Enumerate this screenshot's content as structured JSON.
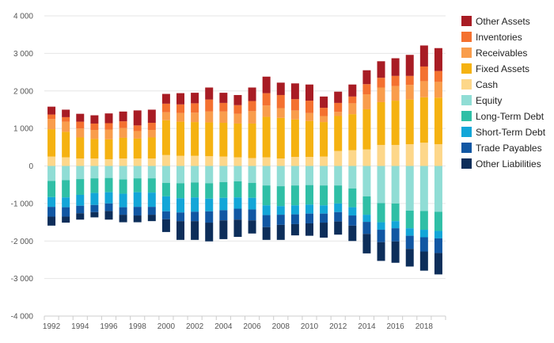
{
  "chart_data": {
    "type": "bar",
    "stacked": true,
    "grid": true,
    "legend_position": "right",
    "ylim": [
      -4000,
      4000
    ],
    "yticks": [
      4000,
      3000,
      2000,
      1000,
      0,
      -1000,
      -2000,
      -3000,
      -4000
    ],
    "ytick_labels": [
      "4 000",
      "3 000",
      "2 000",
      "1 000",
      "0",
      "-1 000",
      "-2 000",
      "-3 000",
      "-4 000"
    ],
    "xtick_labels": [
      "1992",
      "1994",
      "1996",
      "1998",
      "2000",
      "2002",
      "2004",
      "2006",
      "2008",
      "2010",
      "2012",
      "2014",
      "2016",
      "2018"
    ],
    "categories": [
      "1992",
      "1993",
      "1994",
      "1995",
      "1996",
      "1997",
      "1998",
      "1999",
      "2000",
      "2001",
      "2002",
      "2003",
      "2004",
      "2005",
      "2006",
      "2007",
      "2008",
      "2009",
      "2010",
      "2011",
      "2012",
      "2013",
      "2014",
      "2015",
      "2016",
      "2017",
      "2018",
      "2019"
    ],
    "series": [
      {
        "name": "Cash",
        "side": "positive",
        "color": "#fdd78a",
        "values": [
          250,
          230,
          200,
          200,
          180,
          200,
          200,
          200,
          290,
          270,
          270,
          260,
          250,
          230,
          210,
          230,
          200,
          240,
          240,
          250,
          400,
          420,
          440,
          560,
          560,
          580,
          620,
          580
        ]
      },
      {
        "name": "Fixed Assets",
        "side": "positive",
        "color": "#f5b211",
        "values": [
          730,
          680,
          560,
          520,
          530,
          550,
          530,
          560,
          930,
          910,
          900,
          900,
          900,
          900,
          920,
          1080,
          1080,
          1000,
          960,
          920,
          930,
          960,
          1070,
          1140,
          1180,
          1190,
          1210,
          1240
        ]
      },
      {
        "name": "Receivables",
        "side": "positive",
        "color": "#f99d4c",
        "values": [
          270,
          270,
          240,
          240,
          260,
          260,
          200,
          200,
          210,
          230,
          250,
          290,
          300,
          260,
          330,
          300,
          260,
          240,
          210,
          160,
          110,
          290,
          400,
          390,
          390,
          390,
          430,
          420
        ]
      },
      {
        "name": "Inventories",
        "side": "positive",
        "color": "#f47130",
        "values": [
          120,
          120,
          180,
          170,
          170,
          180,
          150,
          190,
          230,
          230,
          250,
          320,
          230,
          230,
          270,
          330,
          350,
          300,
          330,
          220,
          240,
          180,
          270,
          260,
          270,
          240,
          390,
          290
        ]
      },
      {
        "name": "Other Assets",
        "side": "positive",
        "color": "#a81c24",
        "values": [
          210,
          200,
          210,
          220,
          260,
          260,
          400,
          350,
          260,
          300,
          280,
          320,
          270,
          270,
          360,
          440,
          330,
          420,
          430,
          300,
          300,
          320,
          370,
          440,
          470,
          560,
          560,
          610
        ]
      },
      {
        "name": "Equity",
        "side": "negative",
        "color": "#90ddd5",
        "values": [
          400,
          380,
          350,
          330,
          320,
          360,
          330,
          330,
          450,
          460,
          440,
          460,
          430,
          410,
          450,
          520,
          540,
          520,
          510,
          520,
          520,
          600,
          810,
          990,
          1000,
          1190,
          1200,
          1220
        ]
      },
      {
        "name": "Long-Term Debt",
        "side": "negative",
        "color": "#2fbfa6",
        "values": [
          430,
          460,
          420,
          390,
          380,
          380,
          370,
          380,
          360,
          400,
          400,
          410,
          420,
          430,
          400,
          530,
          530,
          530,
          520,
          530,
          480,
          500,
          490,
          510,
          470,
          470,
          500,
          510
        ]
      },
      {
        "name": "Short-Term Debt",
        "side": "negative",
        "color": "#13a6d8",
        "values": [
          260,
          260,
          290,
          320,
          300,
          360,
          390,
          380,
          400,
          380,
          380,
          340,
          330,
          300,
          310,
          260,
          230,
          240,
          240,
          220,
          230,
          220,
          190,
          200,
          190,
          200,
          200,
          200
        ]
      },
      {
        "name": "Trade Payables",
        "side": "negative",
        "color": "#1157a3",
        "values": [
          260,
          250,
          200,
          190,
          200,
          200,
          230,
          210,
          210,
          230,
          250,
          300,
          270,
          290,
          290,
          320,
          270,
          260,
          260,
          240,
          250,
          270,
          320,
          330,
          350,
          350,
          380,
          390
        ]
      },
      {
        "name": "Other Liabilities",
        "side": "negative",
        "color": "#0d2e5a",
        "values": [
          240,
          160,
          170,
          140,
          230,
          200,
          180,
          170,
          340,
          500,
          500,
          500,
          500,
          460,
          350,
          340,
          400,
          300,
          330,
          400,
          350,
          410,
          520,
          500,
          570,
          470,
          510,
          570
        ]
      }
    ],
    "legend_order": [
      "Other Assets",
      "Inventories",
      "Receivables",
      "Fixed Assets",
      "Cash",
      "Equity",
      "Long-Term Debt",
      "Short-Term Debt",
      "Trade Payables",
      "Other Liabilities"
    ]
  }
}
